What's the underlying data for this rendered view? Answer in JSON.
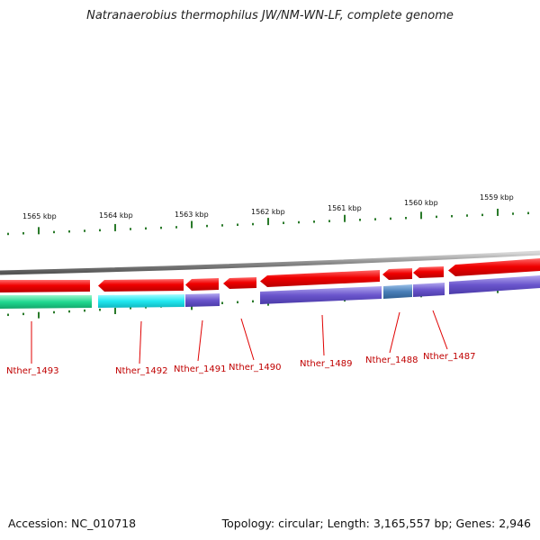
{
  "title": "Natranaerobius thermophilus JW/NM-WN-LF, complete genome",
  "footer": {
    "accession": "Accession: NC_010718",
    "topology": "Topology: circular; Length: 3,165,557 bp; Genes: 2,946"
  },
  "map": {
    "ticks": [
      {
        "label": "1565 kbp"
      },
      {
        "label": "1564 kbp"
      },
      {
        "label": "1563 kbp"
      },
      {
        "label": "1562 kbp"
      },
      {
        "label": "1561 kbp"
      },
      {
        "label": "1560 kbp"
      },
      {
        "label": "1559 kbp"
      }
    ],
    "genes": [
      {
        "label": "Nther_1493"
      },
      {
        "label": "Nther_1492"
      },
      {
        "label": "Nther_1491"
      },
      {
        "label": "Nther_1490"
      },
      {
        "label": "Nther_1489"
      },
      {
        "label": "Nther_1488"
      },
      {
        "label": "Nther_1487"
      }
    ],
    "colors": {
      "backbone": "#8a8a8a",
      "gene_arrow": "#f00000",
      "tick": "#2a7a2a",
      "label": "#c00000",
      "cog_green": "#20d890",
      "cog_cyan": "#20e8f0",
      "cog_purple": "#6a55cc",
      "cog_steel": "#4a7fb8"
    }
  }
}
